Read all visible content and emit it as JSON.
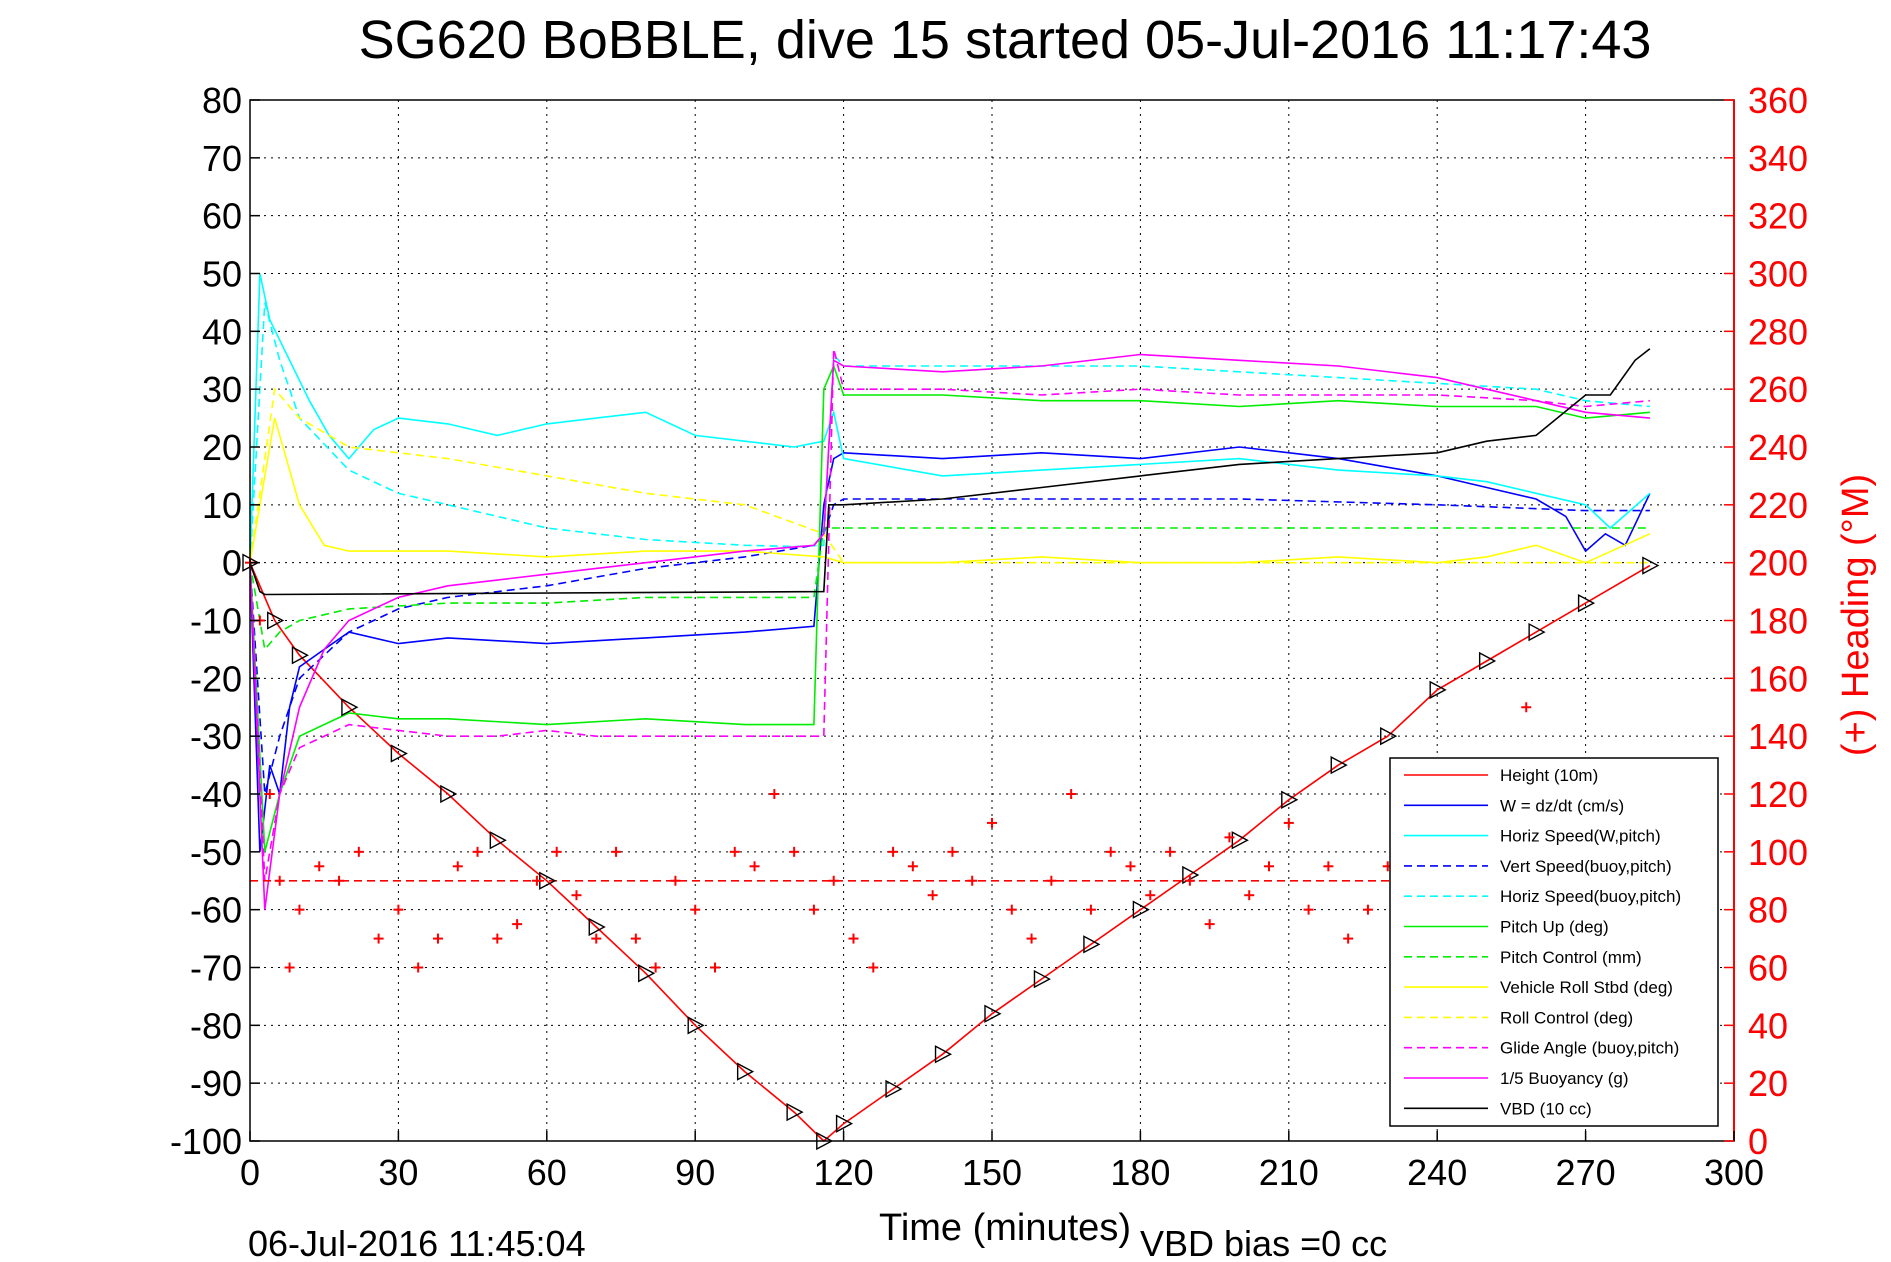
{
  "chart_data": {
    "type": "line",
    "title": "SG620 BoBBLE, dive 15 started 05-Jul-2016 11:17:43",
    "xlabel": "Time (minutes)",
    "ylabel": "",
    "y2label": "(+) Heading (°M)",
    "xlim": [
      0,
      300
    ],
    "ylim": [
      -100,
      80
    ],
    "y2lim": [
      0,
      360
    ],
    "grid": true,
    "legend_position": "bottom-right",
    "x_ticks": [
      "0",
      "30",
      "60",
      "90",
      "120",
      "150",
      "180",
      "210",
      "240",
      "270",
      "300"
    ],
    "y_ticks": [
      "80",
      "70",
      "60",
      "50",
      "40",
      "30",
      "20",
      "10",
      "0",
      "-10",
      "-20",
      "-30",
      "-40",
      "-50",
      "-60",
      "-70",
      "-80",
      "-90",
      "-100"
    ],
    "y2_ticks": [
      "360",
      "340",
      "320",
      "300",
      "280",
      "260",
      "240",
      "220",
      "200",
      "180",
      "160",
      "140",
      "120",
      "100",
      "80",
      "60",
      "40",
      "20",
      "0"
    ],
    "series": [
      {
        "name": "Height (10m)",
        "color": "#ff0000",
        "style": "solid",
        "marker": "triangle",
        "x": [
          0,
          5,
          10,
          20,
          30,
          40,
          50,
          60,
          70,
          80,
          90,
          100,
          110,
          116,
          120,
          130,
          140,
          150,
          160,
          170,
          180,
          190,
          200,
          210,
          220,
          230,
          240,
          250,
          260,
          270,
          283
        ],
        "y": [
          0,
          -10,
          -16,
          -25,
          -33,
          -40,
          -48,
          -55,
          -63,
          -71,
          -80,
          -88,
          -95,
          -100,
          -97,
          -91,
          -85,
          -78,
          -72,
          -66,
          -60,
          -54,
          -48,
          -41,
          -35,
          -30,
          -22,
          -17,
          -12,
          -7,
          -0.5
        ]
      },
      {
        "name": "W = dz/dt (cm/s)",
        "color": "#0000ff",
        "style": "solid",
        "x": [
          0,
          2,
          4,
          6,
          8,
          10,
          15,
          20,
          30,
          40,
          60,
          80,
          100,
          114,
          116,
          118,
          120,
          140,
          160,
          180,
          200,
          220,
          240,
          250,
          260,
          266,
          270,
          274,
          278,
          283
        ],
        "y": [
          0,
          -50,
          -35,
          -40,
          -25,
          -18,
          -15,
          -12,
          -14,
          -13,
          -14,
          -13,
          -12,
          -11,
          10,
          18,
          19,
          18,
          19,
          18,
          20,
          18,
          15,
          13,
          11,
          8,
          2,
          5,
          3,
          12
        ]
      },
      {
        "name": "Horiz Speed(W,pitch)",
        "color": "#00ffff",
        "style": "solid",
        "x": [
          0,
          2,
          4,
          8,
          12,
          16,
          20,
          25,
          30,
          40,
          50,
          60,
          70,
          80,
          90,
          100,
          110,
          116,
          118,
          120,
          140,
          160,
          180,
          200,
          220,
          240,
          250,
          260,
          270,
          275,
          283
        ],
        "y": [
          0,
          50,
          42,
          35,
          28,
          22,
          18,
          23,
          25,
          24,
          22,
          24,
          25,
          26,
          22,
          21,
          20,
          21,
          26,
          18,
          15,
          16,
          17,
          18,
          16,
          15,
          14,
          12,
          10,
          6,
          12
        ]
      },
      {
        "name": "Vert Speed(buoy,pitch)",
        "color": "#0000ff",
        "style": "dashed",
        "x": [
          0,
          3,
          6,
          10,
          20,
          30,
          40,
          60,
          80,
          100,
          114,
          116,
          118,
          120,
          140,
          160,
          200,
          240,
          270,
          283
        ],
        "y": [
          0,
          -40,
          -30,
          -20,
          -12,
          -8,
          -6,
          -4,
          -1,
          1,
          3,
          5,
          10,
          11,
          11,
          11,
          11,
          10,
          9,
          9
        ]
      },
      {
        "name": "Horiz Speed(buoy,pitch)",
        "color": "#00ffff",
        "style": "dashed",
        "x": [
          0,
          3,
          6,
          10,
          20,
          30,
          40,
          50,
          60,
          70,
          80,
          90,
          100,
          110,
          116,
          118,
          120,
          140,
          160,
          180,
          200,
          220,
          240,
          260,
          270,
          283
        ],
        "y": [
          0,
          45,
          35,
          25,
          16,
          12,
          10,
          8,
          6,
          5,
          4,
          3.5,
          3,
          2.8,
          3,
          36,
          34,
          34,
          34,
          34,
          33,
          32,
          31,
          30,
          28,
          27
        ]
      },
      {
        "name": "Pitch Up (deg)",
        "color": "#00ee00",
        "style": "solid",
        "x": [
          0,
          3,
          6,
          10,
          20,
          30,
          40,
          60,
          80,
          100,
          114,
          116,
          118,
          120,
          140,
          160,
          180,
          200,
          220,
          240,
          260,
          270,
          283
        ],
        "y": [
          0,
          -50,
          -40,
          -30,
          -26,
          -27,
          -27,
          -28,
          -27,
          -28,
          -28,
          30,
          34,
          29,
          29,
          28,
          28,
          27,
          28,
          27,
          27,
          25,
          26
        ]
      },
      {
        "name": "Pitch Control (mm)",
        "color": "#00ee00",
        "style": "dashed",
        "x": [
          0,
          3,
          6,
          10,
          20,
          40,
          60,
          80,
          100,
          114,
          116,
          120,
          140,
          160,
          200,
          240,
          270,
          283
        ],
        "y": [
          0,
          -15,
          -12,
          -10,
          -8,
          -7,
          -7,
          -6,
          -6,
          -6,
          6,
          6,
          6,
          6,
          6,
          6,
          6,
          6
        ]
      },
      {
        "name": "Vehicle Roll Stbd (deg)",
        "color": "#ffff00",
        "style": "solid",
        "x": [
          0,
          5,
          10,
          15,
          20,
          40,
          60,
          80,
          100,
          116,
          120,
          140,
          160,
          180,
          200,
          220,
          240,
          250,
          260,
          270,
          283
        ],
        "y": [
          0,
          25,
          10,
          3,
          2,
          2,
          1,
          2,
          2,
          1,
          0,
          0,
          1,
          0,
          0,
          1,
          0,
          1,
          3,
          0,
          5
        ]
      },
      {
        "name": "Roll Control (deg)",
        "color": "#ffff00",
        "style": "dashed",
        "x": [
          0,
          5,
          10,
          20,
          40,
          60,
          80,
          100,
          116,
          120,
          160,
          200,
          240,
          260,
          283
        ],
        "y": [
          0,
          30,
          25,
          20,
          18,
          15,
          12,
          10,
          5,
          0,
          0,
          0,
          0,
          0,
          0
        ]
      },
      {
        "name": "Glide Angle (buoy,pitch)",
        "color": "#ff00ff",
        "style": "dashed",
        "x": [
          0,
          3,
          6,
          10,
          20,
          30,
          40,
          50,
          60,
          70,
          80,
          116,
          118,
          120,
          140,
          160,
          180,
          200,
          220,
          240,
          260,
          270,
          283
        ],
        "y": [
          0,
          -55,
          -40,
          -32,
          -28,
          -29,
          -30,
          -30,
          -29,
          -30,
          -30,
          -30,
          37,
          30,
          30,
          29,
          30,
          29,
          29,
          29,
          28,
          27,
          28
        ]
      },
      {
        "name": "1/5 Buoyancy (g)",
        "color": "#ff00ff",
        "style": "solid",
        "x": [
          0,
          3,
          6,
          10,
          15,
          20,
          30,
          40,
          60,
          80,
          100,
          114,
          116,
          118,
          120,
          140,
          160,
          180,
          200,
          220,
          240,
          250,
          260,
          270,
          283
        ],
        "y": [
          0,
          -60,
          -40,
          -25,
          -15,
          -10,
          -6,
          -4,
          -2,
          0,
          2,
          3,
          5,
          35,
          34,
          33,
          34,
          36,
          35,
          34,
          32,
          30,
          28,
          26,
          25
        ]
      },
      {
        "name": "VBD (10 cc)",
        "color": "#000000",
        "style": "solid",
        "x": [
          0,
          2,
          3,
          116,
          117,
          120,
          140,
          160,
          180,
          200,
          220,
          240,
          250,
          260,
          270,
          275,
          280,
          283
        ],
        "y": [
          0,
          -5,
          -5.5,
          -5,
          10,
          10,
          11,
          13,
          15,
          17,
          18,
          19,
          21,
          22,
          29,
          29,
          35,
          37
        ]
      },
      {
        "name": "Heading",
        "axis": "right",
        "color": "#ff0000",
        "style": "markers",
        "marker": "plus",
        "x": [
          0,
          2,
          4,
          6,
          8,
          10,
          14,
          18,
          22,
          26,
          30,
          34,
          38,
          42,
          46,
          50,
          54,
          58,
          62,
          66,
          70,
          74,
          78,
          82,
          86,
          90,
          94,
          98,
          102,
          106,
          110,
          114,
          118,
          122,
          126,
          130,
          134,
          138,
          142,
          146,
          150,
          154,
          158,
          162,
          166,
          170,
          174,
          178,
          182,
          186,
          190,
          194,
          198,
          202,
          206,
          210,
          214,
          218,
          222,
          226,
          230,
          234,
          238,
          242,
          246,
          250,
          254,
          258
        ],
        "y": [
          200,
          180,
          120,
          90,
          60,
          80,
          95,
          90,
          100,
          70,
          80,
          60,
          70,
          95,
          100,
          70,
          75,
          90,
          100,
          85,
          70,
          100,
          70,
          60,
          90,
          80,
          60,
          100,
          95,
          120,
          100,
          80,
          90,
          70,
          60,
          100,
          95,
          85,
          100,
          90,
          110,
          80,
          70,
          90,
          120,
          80,
          100,
          95,
          85,
          100,
          90,
          75,
          105,
          85,
          95,
          110,
          80,
          95,
          70,
          80,
          95,
          85,
          90,
          100,
          90,
          85,
          95,
          150
        ]
      },
      {
        "name": "Heading (mean)",
        "axis": "right",
        "color": "#ff0000",
        "style": "dashed",
        "x": [
          0,
          258
        ],
        "y": [
          90,
          90
        ]
      }
    ]
  },
  "legend": {
    "items": [
      {
        "label": "Height (10m)",
        "color": "#ff0000",
        "style": "solid"
      },
      {
        "label": "W = dz/dt (cm/s)",
        "color": "#0000ff",
        "style": "solid"
      },
      {
        "label": "Horiz Speed(W,pitch)",
        "color": "#00ffff",
        "style": "solid"
      },
      {
        "label": "Vert Speed(buoy,pitch)",
        "color": "#0000ff",
        "style": "dashed"
      },
      {
        "label": "Horiz Speed(buoy,pitch)",
        "color": "#00ffff",
        "style": "dashed"
      },
      {
        "label": "Pitch Up (deg)",
        "color": "#00ee00",
        "style": "solid"
      },
      {
        "label": "Pitch Control (mm)",
        "color": "#00ee00",
        "style": "dashed"
      },
      {
        "label": "Vehicle Roll Stbd (deg)",
        "color": "#ffff00",
        "style": "solid"
      },
      {
        "label": "Roll Control (deg)",
        "color": "#ffff00",
        "style": "dashed"
      },
      {
        "label": "Glide Angle (buoy,pitch)",
        "color": "#ff00ff",
        "style": "dashed"
      },
      {
        "label": "1/5 Buoyancy (g)",
        "color": "#ff00ff",
        "style": "solid"
      },
      {
        "label": "VBD (10 cc)",
        "color": "#000000",
        "style": "solid"
      }
    ]
  },
  "footer": {
    "timestamp": "06-Jul-2016 11:45:04",
    "vbd_bias": "VBD bias =0 cc"
  },
  "colors": {
    "right_axis": "#ff0000",
    "grid": "#000000",
    "axes": "#000000"
  }
}
